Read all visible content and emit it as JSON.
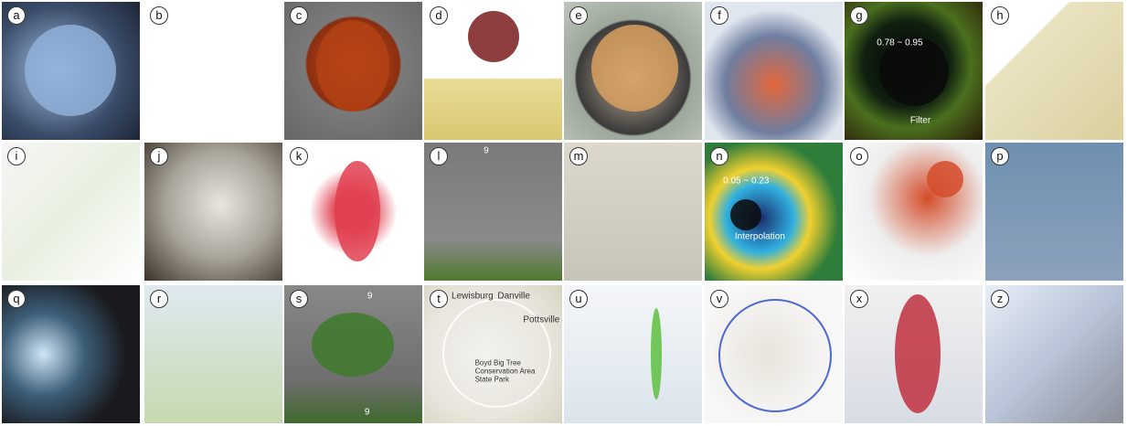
{
  "panels": [
    {
      "label": "a"
    },
    {
      "label": "b"
    },
    {
      "label": "c"
    },
    {
      "label": "d"
    },
    {
      "label": "e"
    },
    {
      "label": "f"
    },
    {
      "label": "g",
      "annotations": [
        "0.78 ~ 0.95",
        "Filter"
      ]
    },
    {
      "label": "h"
    },
    {
      "label": "i"
    },
    {
      "label": "j"
    },
    {
      "label": "k"
    },
    {
      "label": "l",
      "annotations": [
        "9"
      ]
    },
    {
      "label": "m"
    },
    {
      "label": "n",
      "annotations": [
        "0.05 ~ 0.23",
        "Interpolation"
      ]
    },
    {
      "label": "o"
    },
    {
      "label": "p"
    },
    {
      "label": "q"
    },
    {
      "label": "r"
    },
    {
      "label": "s",
      "annotations": [
        "9",
        "9"
      ]
    },
    {
      "label": "t",
      "annotations": [
        "Lewisburg",
        "Danville",
        "Pottsville",
        "Boyd Big Tree Conservation Area State Park"
      ]
    },
    {
      "label": "u"
    },
    {
      "label": "v"
    },
    {
      "label": "x"
    },
    {
      "label": "z"
    }
  ]
}
